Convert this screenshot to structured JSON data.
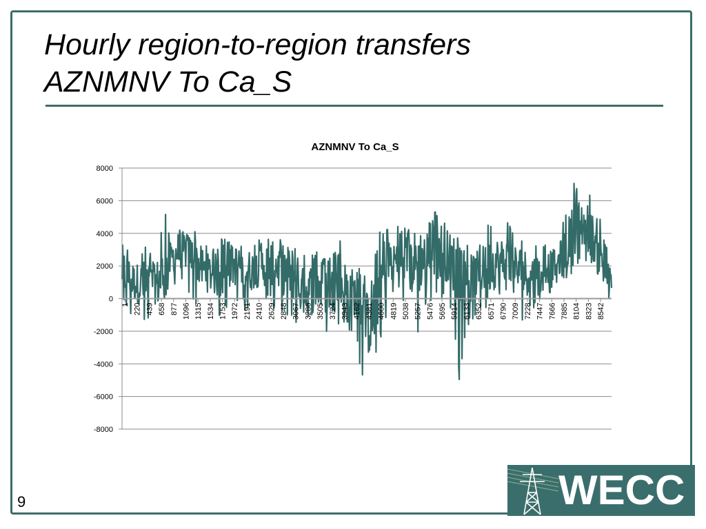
{
  "slide": {
    "title_line1": "Hourly region-to-region transfers",
    "title_line2": "AZNMNV To Ca_S",
    "page_number": "9",
    "logo_text": "WECC"
  },
  "colors": {
    "accent": "#3d6b68",
    "series": "#336b68",
    "logo_bg": "#3a6e6c"
  },
  "chart_data": {
    "type": "line",
    "title": "AZNMNV To Ca_S",
    "xlabel": "",
    "ylabel": "",
    "ylim": [
      -8000,
      8000
    ],
    "yticks": [
      8000,
      6000,
      4000,
      2000,
      0,
      -2000,
      -4000,
      -6000,
      -8000
    ],
    "xlim": [
      1,
      8760
    ],
    "xticks": [
      1,
      220,
      439,
      658,
      877,
      1096,
      1315,
      1534,
      1753,
      1972,
      2191,
      2410,
      2629,
      2848,
      3067,
      3286,
      3505,
      3724,
      3943,
      4162,
      4381,
      4600,
      4819,
      5038,
      5257,
      5476,
      5695,
      5914,
      6133,
      6352,
      6571,
      6790,
      7009,
      7228,
      7447,
      7666,
      7885,
      8104,
      8323,
      8542
    ],
    "grid": "horizontal",
    "legend": "none",
    "series": [
      {
        "x": [
          1,
          100,
          220,
          330,
          439,
          550,
          658,
          760,
          877,
          1000,
          1096,
          1200,
          1315,
          1420,
          1534,
          1640,
          1753,
          1860,
          1972,
          2080,
          2191,
          2300,
          2410,
          2520,
          2629,
          2740,
          2848,
          2960,
          3067,
          3180,
          3286,
          3400,
          3505,
          3610,
          3724,
          3830,
          3943,
          4050,
          4162,
          4270,
          4381,
          4490,
          4600,
          4710,
          4819,
          4930,
          5038,
          5150,
          5257,
          5370,
          5476,
          5590,
          5695,
          5800,
          5914,
          6020,
          6133,
          6240,
          6352,
          6460,
          6571,
          6680,
          6790,
          6900,
          7009,
          7120,
          7228,
          7340,
          7447,
          7560,
          7666,
          7780,
          7885,
          8000,
          8104,
          8210,
          8323,
          8430,
          8542,
          8650,
          8760
        ],
        "center": [
          1800,
          1400,
          1000,
          900,
          800,
          900,
          1000,
          1600,
          2400,
          2900,
          3000,
          2800,
          2400,
          1900,
          1600,
          1500,
          1400,
          1600,
          2000,
          2100,
          1900,
          1700,
          1900,
          2000,
          2200,
          2100,
          1800,
          1700,
          1500,
          500,
          400,
          600,
          800,
          700,
          500,
          600,
          800,
          500,
          300,
          -600,
          -1500,
          -1000,
          800,
          2000,
          2400,
          2300,
          2100,
          2000,
          2100,
          2500,
          2700,
          2900,
          3000,
          2700,
          2300,
          1400,
          1000,
          1200,
          1500,
          1700,
          2000,
          2200,
          2300,
          2100,
          1800,
          1700,
          1600,
          1500,
          1700,
          1900,
          2000,
          2200,
          2600,
          3600,
          4400,
          4600,
          4400,
          3700,
          2600,
          1500,
          1000
        ],
        "high": [
          4700,
          3200,
          2600,
          2800,
          3900,
          2300,
          3900,
          5500,
          4300,
          4400,
          4300,
          4100,
          4300,
          3700,
          3200,
          3100,
          3800,
          3700,
          3300,
          3900,
          3500,
          3300,
          3500,
          3900,
          4000,
          3700,
          3800,
          4000,
          3700,
          2500,
          2800,
          3000,
          3000,
          2600,
          2700,
          2900,
          3900,
          4000,
          2300,
          1800,
          1200,
          3300,
          4000,
          4800,
          4400,
          4700,
          4400,
          4300,
          4900,
          5000,
          4700,
          5300,
          5900,
          5100,
          4100,
          3700,
          3200,
          3600,
          3700,
          3500,
          4900,
          5100,
          4600,
          4900,
          4300,
          3600,
          3400,
          3100,
          3300,
          3700,
          3500,
          3500,
          5100,
          6300,
          7200,
          7000,
          6700,
          6400,
          5200,
          3500,
          2500
        ],
        "low": [
          -500,
          -1100,
          -1200,
          -1600,
          -1700,
          -1300,
          -1400,
          0,
          700,
          500,
          600,
          300,
          -300,
          -600,
          -900,
          -1000,
          -1100,
          -900,
          -800,
          -500,
          -700,
          -900,
          -600,
          -500,
          -400,
          -800,
          -1400,
          -1300,
          -1800,
          -2100,
          -2500,
          -2400,
          -2100,
          -3300,
          -1900,
          -1800,
          -1700,
          -1900,
          -2200,
          -4500,
          -5400,
          -5400,
          -3800,
          -1700,
          -300,
          -400,
          -900,
          -1200,
          -2700,
          -1200,
          -500,
          -300,
          -100,
          -300,
          -1300,
          -5400,
          -2400,
          -1400,
          -1000,
          -800,
          -500,
          -300,
          -200,
          -1000,
          -1200,
          -1700,
          -1400,
          -800,
          -200,
          300,
          300,
          500,
          900,
          1300,
          1700,
          2000,
          1700,
          1600,
          300,
          -300,
          100
        ]
      }
    ]
  }
}
